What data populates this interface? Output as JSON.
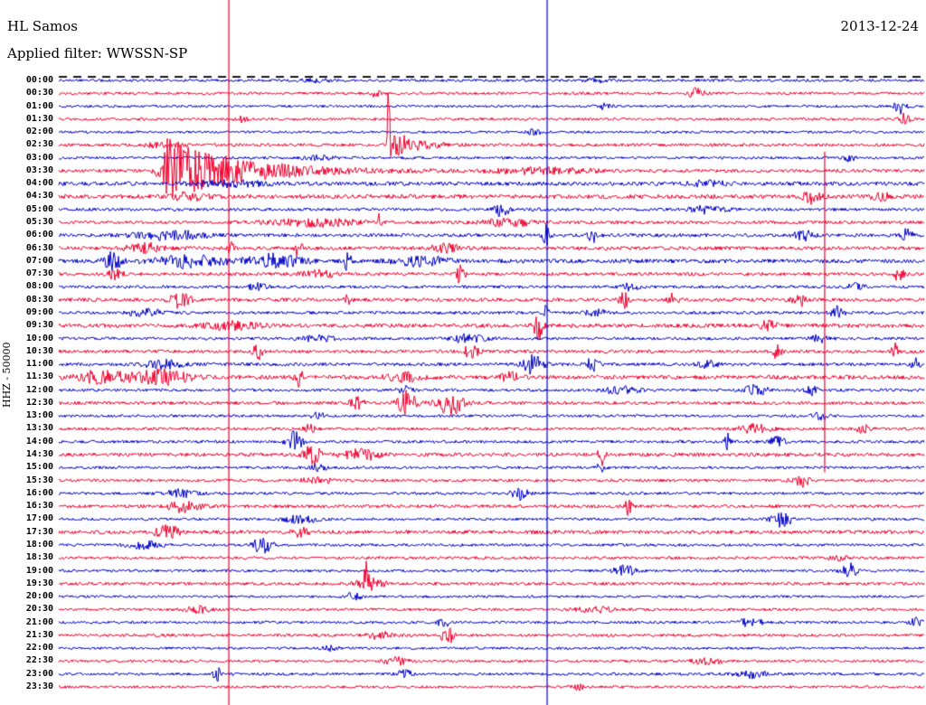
{
  "header": {
    "station": "HL Samos",
    "filter": "Applied filter: WWSSN-SP",
    "date": "2013-12-24"
  },
  "y_axis_label": "HHZ - 50000",
  "chart_data": {
    "type": "line",
    "title": "24-hour helicorder seismogram, station HL Samos, 2013-12-24, channel HHZ, filter WWSSN-SP, scale 50000",
    "row_minutes": 30,
    "x_range": [
      0,
      30
    ],
    "legend": "none",
    "grid": "off",
    "colors": {
      "red": "#f2002e",
      "blue": "#0000c8",
      "tick": "#1a1a1a"
    },
    "color_rule": "on-the-hour rows blue, half-past rows red",
    "vertical_lines": [
      {
        "x": 0.1965,
        "color": "red",
        "y_top": 0.0,
        "y_bottom": 1.0
      },
      {
        "x": 0.5643,
        "color": "blue",
        "y_top": 0.0,
        "y_bottom": 1.0
      },
      {
        "x": 0.885,
        "color": "red",
        "y_top": 0.215,
        "y_bottom": 0.67
      }
    ],
    "traces": [
      {
        "label": "00:00",
        "color": "blue",
        "noise": 1.4,
        "events": [
          {
            "x": 0.3,
            "a": 2,
            "w": 0.02
          },
          {
            "x": 0.62,
            "a": 2,
            "w": 0.015
          }
        ]
      },
      {
        "label": "00:30",
        "color": "red",
        "noise": 1.5,
        "events": [
          {
            "x": 0.366,
            "a": 4,
            "w": 0.005
          },
          {
            "x": 0.737,
            "a": 6,
            "w": 0.009
          }
        ]
      },
      {
        "label": "01:00",
        "color": "blue",
        "noise": 1.4,
        "events": [
          {
            "x": 0.63,
            "a": 3,
            "w": 0.008
          },
          {
            "x": 0.972,
            "a": 8,
            "w": 0.007
          }
        ]
      },
      {
        "label": "01:30",
        "color": "red",
        "noise": 1.5,
        "events": [
          {
            "x": 0.21,
            "a": 3,
            "w": 0.008
          },
          {
            "x": 0.977,
            "a": 6,
            "w": 0.006
          }
        ]
      },
      {
        "label": "02:00",
        "color": "blue",
        "noise": 1.4,
        "events": [
          {
            "x": 0.55,
            "a": 3,
            "w": 0.008
          }
        ]
      },
      {
        "label": "02:30",
        "color": "red",
        "noise": 1.7,
        "events": [
          {
            "x": 0.381,
            "a": 170,
            "w": 0.0012,
            "up": true
          },
          {
            "x": 0.384,
            "a": 17,
            "r": 0.003,
            "d": 0.024
          },
          {
            "x": 0.12,
            "a": 3,
            "w": 0.02
          }
        ]
      },
      {
        "label": "03:00",
        "color": "blue",
        "noise": 1.5,
        "events": [
          {
            "x": 0.914,
            "a": 5,
            "w": 0.005
          },
          {
            "x": 0.3,
            "a": 2,
            "w": 0.02
          }
        ]
      },
      {
        "label": "03:30",
        "color": "red",
        "noise": 1.8,
        "events": [
          {
            "x": 0.128,
            "a": 36,
            "r": 0.012,
            "d": 0.075
          },
          {
            "x": 0.56,
            "a": 3,
            "w": 0.06
          }
        ]
      },
      {
        "label": "04:00",
        "color": "blue",
        "noise": 2.2,
        "events": [
          {
            "x": 0.2,
            "a": 3,
            "w": 0.04
          },
          {
            "x": 0.75,
            "a": 3,
            "w": 0.02
          }
        ]
      },
      {
        "label": "04:30",
        "color": "red",
        "noise": 2.3,
        "events": [
          {
            "x": 0.15,
            "a": 4,
            "w": 0.02
          },
          {
            "x": 0.87,
            "a": 7,
            "w": 0.009
          },
          {
            "x": 0.95,
            "a": 5,
            "w": 0.009
          }
        ]
      },
      {
        "label": "05:00",
        "color": "blue",
        "noise": 1.7,
        "events": [
          {
            "x": 0.512,
            "a": 10,
            "w": 0.007
          },
          {
            "x": 0.75,
            "a": 4,
            "w": 0.02
          }
        ]
      },
      {
        "label": "05:30",
        "color": "red",
        "noise": 1.8,
        "events": [
          {
            "x": 0.3,
            "a": 4,
            "w": 0.05
          },
          {
            "x": 0.371,
            "a": 11,
            "w": 0.002
          },
          {
            "x": 0.52,
            "a": 4,
            "w": 0.03
          }
        ]
      },
      {
        "label": "06:00",
        "color": "blue",
        "noise": 1.9,
        "events": [
          {
            "x": 0.13,
            "a": 5,
            "w": 0.04
          },
          {
            "x": 0.564,
            "a": 14,
            "w": 0.004
          },
          {
            "x": 0.617,
            "a": 8,
            "w": 0.007
          },
          {
            "x": 0.86,
            "a": 6,
            "w": 0.009
          },
          {
            "x": 0.98,
            "a": 8,
            "w": 0.006
          }
        ]
      },
      {
        "label": "06:30",
        "color": "red",
        "noise": 2.0,
        "events": [
          {
            "x": 0.1,
            "a": 5,
            "w": 0.02
          },
          {
            "x": 0.199,
            "a": 12,
            "w": 0.004
          },
          {
            "x": 0.277,
            "a": 8,
            "w": 0.006
          },
          {
            "x": 0.45,
            "a": 4,
            "w": 0.02
          }
        ]
      },
      {
        "label": "07:00",
        "color": "blue",
        "noise": 2.2,
        "events": [
          {
            "x": 0.063,
            "a": 10,
            "w": 0.01
          },
          {
            "x": 0.15,
            "a": 7,
            "w": 0.04
          },
          {
            "x": 0.25,
            "a": 8,
            "w": 0.03
          },
          {
            "x": 0.334,
            "a": 13,
            "w": 0.004
          },
          {
            "x": 0.42,
            "a": 5,
            "w": 0.03
          }
        ]
      },
      {
        "label": "07:30",
        "color": "red",
        "noise": 1.8,
        "events": [
          {
            "x": 0.065,
            "a": 6,
            "w": 0.01
          },
          {
            "x": 0.3,
            "a": 4,
            "w": 0.02
          },
          {
            "x": 0.465,
            "a": 16,
            "w": 0.004
          },
          {
            "x": 0.97,
            "a": 8,
            "w": 0.006
          }
        ]
      },
      {
        "label": "08:00",
        "color": "blue",
        "noise": 1.6,
        "events": [
          {
            "x": 0.23,
            "a": 4,
            "w": 0.01
          },
          {
            "x": 0.66,
            "a": 4,
            "w": 0.01
          },
          {
            "x": 0.92,
            "a": 4,
            "w": 0.01
          }
        ]
      },
      {
        "label": "08:30",
        "color": "red",
        "noise": 2.0,
        "events": [
          {
            "x": 0.141,
            "a": 9,
            "w": 0.011
          },
          {
            "x": 0.334,
            "a": 6,
            "w": 0.004
          },
          {
            "x": 0.653,
            "a": 8,
            "w": 0.006
          },
          {
            "x": 0.71,
            "a": 7,
            "w": 0.006
          },
          {
            "x": 0.857,
            "a": 6,
            "w": 0.009
          }
        ]
      },
      {
        "label": "09:00",
        "color": "blue",
        "noise": 1.7,
        "events": [
          {
            "x": 0.1,
            "a": 4,
            "w": 0.02
          },
          {
            "x": 0.564,
            "a": 9,
            "w": 0.004
          },
          {
            "x": 0.62,
            "a": 5,
            "w": 0.01
          },
          {
            "x": 0.9,
            "a": 7,
            "w": 0.007
          }
        ]
      },
      {
        "label": "09:30",
        "color": "red",
        "noise": 2.2,
        "events": [
          {
            "x": 0.2,
            "a": 4,
            "w": 0.03
          },
          {
            "x": 0.554,
            "a": 16,
            "w": 0.005
          },
          {
            "x": 0.82,
            "a": 6,
            "w": 0.009
          }
        ]
      },
      {
        "label": "10:00",
        "color": "blue",
        "noise": 1.6,
        "events": [
          {
            "x": 0.3,
            "a": 3,
            "w": 0.02
          },
          {
            "x": 0.475,
            "a": 5,
            "w": 0.02
          },
          {
            "x": 0.88,
            "a": 4,
            "w": 0.01
          }
        ]
      },
      {
        "label": "10:30",
        "color": "red",
        "noise": 1.8,
        "events": [
          {
            "x": 0.23,
            "a": 10,
            "w": 0.005
          },
          {
            "x": 0.476,
            "a": 6,
            "w": 0.01
          },
          {
            "x": 0.83,
            "a": 12,
            "w": 0.004
          },
          {
            "x": 0.967,
            "a": 10,
            "w": 0.004
          }
        ]
      },
      {
        "label": "11:00",
        "color": "blue",
        "noise": 1.8,
        "events": [
          {
            "x": 0.12,
            "a": 5,
            "w": 0.02
          },
          {
            "x": 0.549,
            "a": 12,
            "w": 0.011
          },
          {
            "x": 0.617,
            "a": 8,
            "w": 0.007
          },
          {
            "x": 0.75,
            "a": 4,
            "w": 0.01
          },
          {
            "x": 0.99,
            "a": 6,
            "w": 0.005
          }
        ]
      },
      {
        "label": "11:30",
        "color": "red",
        "noise": 2.2,
        "events": [
          {
            "x": 0.05,
            "a": 7,
            "w": 0.03
          },
          {
            "x": 0.12,
            "a": 8,
            "w": 0.03
          },
          {
            "x": 0.277,
            "a": 14,
            "w": 0.004
          },
          {
            "x": 0.4,
            "a": 5,
            "w": 0.02
          },
          {
            "x": 0.52,
            "a": 6,
            "w": 0.01
          }
        ]
      },
      {
        "label": "12:00",
        "color": "blue",
        "noise": 1.6,
        "events": [
          {
            "x": 0.4,
            "a": 4,
            "w": 0.01
          },
          {
            "x": 0.65,
            "a": 4,
            "w": 0.02
          },
          {
            "x": 0.805,
            "a": 6,
            "w": 0.013
          },
          {
            "x": 0.87,
            "a": 5,
            "w": 0.007
          }
        ]
      },
      {
        "label": "12:30",
        "color": "red",
        "noise": 1.8,
        "events": [
          {
            "x": 0.345,
            "a": 6,
            "w": 0.009
          },
          {
            "x": 0.402,
            "a": 13,
            "w": 0.011
          },
          {
            "x": 0.452,
            "a": 13,
            "w": 0.015
          }
        ]
      },
      {
        "label": "13:00",
        "color": "blue",
        "noise": 1.5,
        "events": [
          {
            "x": 0.3,
            "a": 4,
            "w": 0.007
          },
          {
            "x": 0.88,
            "a": 4,
            "w": 0.01
          }
        ]
      },
      {
        "label": "13:30",
        "color": "red",
        "noise": 1.6,
        "events": [
          {
            "x": 0.29,
            "a": 5,
            "w": 0.007
          },
          {
            "x": 0.805,
            "a": 5,
            "w": 0.018
          },
          {
            "x": 0.93,
            "a": 4,
            "w": 0.009
          }
        ]
      },
      {
        "label": "14:00",
        "color": "blue",
        "noise": 1.6,
        "events": [
          {
            "x": 0.272,
            "a": 11,
            "w": 0.009
          },
          {
            "x": 0.773,
            "a": 10,
            "w": 0.004
          },
          {
            "x": 0.83,
            "a": 5,
            "w": 0.009
          }
        ]
      },
      {
        "label": "14:30",
        "color": "red",
        "noise": 2.0,
        "events": [
          {
            "x": 0.293,
            "a": 11,
            "w": 0.009
          },
          {
            "x": 0.35,
            "a": 6,
            "w": 0.02
          },
          {
            "x": 0.627,
            "a": 12,
            "w": 0.004
          }
        ]
      },
      {
        "label": "15:00",
        "color": "blue",
        "noise": 1.5,
        "events": [
          {
            "x": 0.3,
            "a": 4,
            "w": 0.009
          },
          {
            "x": 0.627,
            "a": 5,
            "w": 0.005
          }
        ]
      },
      {
        "label": "15:30",
        "color": "red",
        "noise": 1.6,
        "events": [
          {
            "x": 0.3,
            "a": 3,
            "w": 0.02
          },
          {
            "x": 0.857,
            "a": 8,
            "w": 0.009
          }
        ]
      },
      {
        "label": "16:00",
        "color": "blue",
        "noise": 1.5,
        "events": [
          {
            "x": 0.14,
            "a": 4,
            "w": 0.02
          },
          {
            "x": 0.533,
            "a": 9,
            "w": 0.009
          }
        ]
      },
      {
        "label": "16:30",
        "color": "red",
        "noise": 1.8,
        "events": [
          {
            "x": 0.146,
            "a": 7,
            "w": 0.018
          },
          {
            "x": 0.658,
            "a": 10,
            "w": 0.004
          }
        ]
      },
      {
        "label": "17:00",
        "color": "blue",
        "noise": 1.5,
        "events": [
          {
            "x": 0.28,
            "a": 4,
            "w": 0.02
          },
          {
            "x": 0.836,
            "a": 9,
            "w": 0.011
          }
        ]
      },
      {
        "label": "17:30",
        "color": "red",
        "noise": 2.0,
        "events": [
          {
            "x": 0.125,
            "a": 8,
            "w": 0.013
          },
          {
            "x": 0.28,
            "a": 5,
            "w": 0.009
          }
        ]
      },
      {
        "label": "18:00",
        "color": "blue",
        "noise": 1.5,
        "events": [
          {
            "x": 0.1,
            "a": 4,
            "w": 0.02
          },
          {
            "x": 0.235,
            "a": 9,
            "w": 0.011
          }
        ]
      },
      {
        "label": "18:30",
        "color": "red",
        "noise": 1.6,
        "events": [
          {
            "x": 0.9,
            "a": 4,
            "w": 0.009
          }
        ]
      },
      {
        "label": "19:00",
        "color": "blue",
        "noise": 1.5,
        "events": [
          {
            "x": 0.653,
            "a": 9,
            "w": 0.011
          },
          {
            "x": 0.914,
            "a": 8,
            "w": 0.009
          }
        ]
      },
      {
        "label": "19:30",
        "color": "red",
        "noise": 1.7,
        "events": [
          {
            "x": 0.355,
            "a": 26,
            "w": 0.0025
          },
          {
            "x": 0.36,
            "a": 6,
            "w": 0.015
          }
        ]
      },
      {
        "label": "20:00",
        "color": "blue",
        "noise": 1.4,
        "events": [
          {
            "x": 0.34,
            "a": 4,
            "w": 0.009
          }
        ]
      },
      {
        "label": "20:30",
        "color": "red",
        "noise": 1.5,
        "events": [
          {
            "x": 0.16,
            "a": 4,
            "w": 0.013
          },
          {
            "x": 0.62,
            "a": 3,
            "w": 0.02
          }
        ]
      },
      {
        "label": "21:00",
        "color": "blue",
        "noise": 1.5,
        "events": [
          {
            "x": 0.445,
            "a": 5,
            "w": 0.007
          },
          {
            "x": 0.8,
            "a": 6,
            "w": 0.011
          },
          {
            "x": 0.99,
            "a": 5,
            "w": 0.007
          }
        ]
      },
      {
        "label": "21:30",
        "color": "red",
        "noise": 1.6,
        "events": [
          {
            "x": 0.37,
            "a": 4,
            "w": 0.013
          },
          {
            "x": 0.449,
            "a": 11,
            "w": 0.007
          }
        ]
      },
      {
        "label": "22:00",
        "color": "blue",
        "noise": 1.4,
        "events": [
          {
            "x": 0.314,
            "a": 3,
            "w": 0.009
          }
        ]
      },
      {
        "label": "22:30",
        "color": "red",
        "noise": 1.5,
        "events": [
          {
            "x": 0.39,
            "a": 4,
            "w": 0.013
          },
          {
            "x": 0.75,
            "a": 3,
            "w": 0.018
          }
        ]
      },
      {
        "label": "23:00",
        "color": "blue",
        "noise": 1.5,
        "events": [
          {
            "x": 0.183,
            "a": 10,
            "w": 0.004
          },
          {
            "x": 0.4,
            "a": 4,
            "w": 0.009
          },
          {
            "x": 0.8,
            "a": 4,
            "w": 0.018
          }
        ]
      },
      {
        "label": "23:30",
        "color": "red",
        "noise": 1.4,
        "events": [
          {
            "x": 0.6,
            "a": 3,
            "w": 0.009
          }
        ]
      }
    ]
  }
}
